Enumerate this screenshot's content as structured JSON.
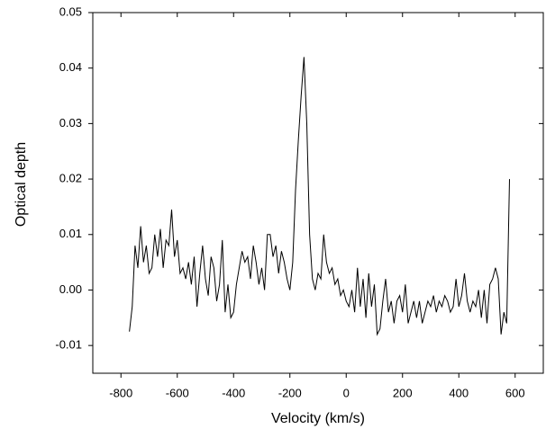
{
  "chart_data": {
    "type": "line",
    "x_label": "Velocity (km/s)",
    "y_label": "Optical depth",
    "xlim": [
      -900,
      700
    ],
    "ylim": [
      -0.015,
      0.05
    ],
    "xticks": [
      -800,
      -600,
      -400,
      -200,
      0,
      200,
      400,
      600
    ],
    "yticks": [
      -0.01,
      {
        "value": 0,
        "label": "0.00"
      },
      0.01,
      0.02,
      0.03,
      0.04,
      0.05
    ],
    "series": [
      {
        "color": "#000000",
        "x": [
          -770,
          -760,
          -750,
          -740,
          -730,
          -720,
          -710,
          -700,
          -690,
          -680,
          -670,
          -660,
          -650,
          -640,
          -630,
          -620,
          -610,
          -600,
          -590,
          -580,
          -570,
          -560,
          -550,
          -540,
          -530,
          -520,
          -510,
          -500,
          -490,
          -480,
          -470,
          -460,
          -450,
          -440,
          -430,
          -420,
          -410,
          -400,
          -390,
          -380,
          -370,
          -360,
          -350,
          -340,
          -330,
          -320,
          -310,
          -300,
          -290,
          -280,
          -270,
          -260,
          -250,
          -240,
          -230,
          -220,
          -210,
          -200,
          -190,
          -180,
          -170,
          -160,
          -150,
          -140,
          -130,
          -120,
          -110,
          -100,
          -90,
          -80,
          -70,
          -60,
          -50,
          -40,
          -30,
          -20,
          -10,
          0,
          10,
          20,
          30,
          40,
          50,
          60,
          70,
          80,
          90,
          100,
          110,
          120,
          130,
          140,
          150,
          160,
          170,
          180,
          190,
          200,
          210,
          220,
          230,
          240,
          250,
          260,
          270,
          280,
          290,
          300,
          310,
          320,
          330,
          340,
          350,
          360,
          370,
          380,
          390,
          400,
          410,
          420,
          430,
          440,
          450,
          460,
          470,
          480,
          490,
          500,
          510,
          520,
          530,
          540,
          550,
          560,
          570,
          580
        ],
        "values": [
          -0.0075,
          -0.003,
          0.008,
          0.004,
          0.0115,
          0.005,
          0.008,
          0.003,
          0.004,
          0.01,
          0.006,
          0.011,
          0.004,
          0.009,
          0.008,
          0.0145,
          0.006,
          0.009,
          0.003,
          0.004,
          0.002,
          0.005,
          0.001,
          0.006,
          -0.003,
          0.003,
          0.008,
          0.002,
          -0.001,
          0.006,
          0.004,
          -0.002,
          0.001,
          0.009,
          -0.004,
          0.001,
          -0.005,
          -0.004,
          0.001,
          0.004,
          0.007,
          0.005,
          0.006,
          0.002,
          0.008,
          0.005,
          0.001,
          0.004,
          0,
          0.01,
          0.01,
          0.006,
          0.008,
          0.003,
          0.007,
          0.005,
          0.002,
          0,
          0.005,
          0.018,
          0.027,
          0.035,
          0.042,
          0.03,
          0.01,
          0.002,
          0,
          0.003,
          0.002,
          0.01,
          0.005,
          0.003,
          0.004,
          0.001,
          0.002,
          -0.001,
          0,
          -0.002,
          -0.003,
          0,
          -0.004,
          0.004,
          -0.003,
          0.002,
          -0.005,
          0.003,
          -0.003,
          0.001,
          -0.008,
          -0.007,
          -0.002,
          0.002,
          -0.004,
          -0.002,
          -0.006,
          -0.002,
          -0.001,
          -0.004,
          0.001,
          -0.006,
          -0.004,
          -0.002,
          -0.005,
          -0.002,
          -0.006,
          -0.004,
          -0.002,
          -0.003,
          -0.001,
          -0.004,
          -0.002,
          -0.003,
          -0.001,
          -0.002,
          -0.004,
          -0.003,
          0.002,
          -0.003,
          -0.001,
          0.003,
          -0.002,
          -0.004,
          -0.002,
          -0.003,
          0,
          -0.005,
          0,
          -0.006,
          0.001,
          0.002,
          0.004,
          0.002,
          -0.008,
          -0.004,
          -0.006,
          0.02
        ]
      }
    ]
  }
}
